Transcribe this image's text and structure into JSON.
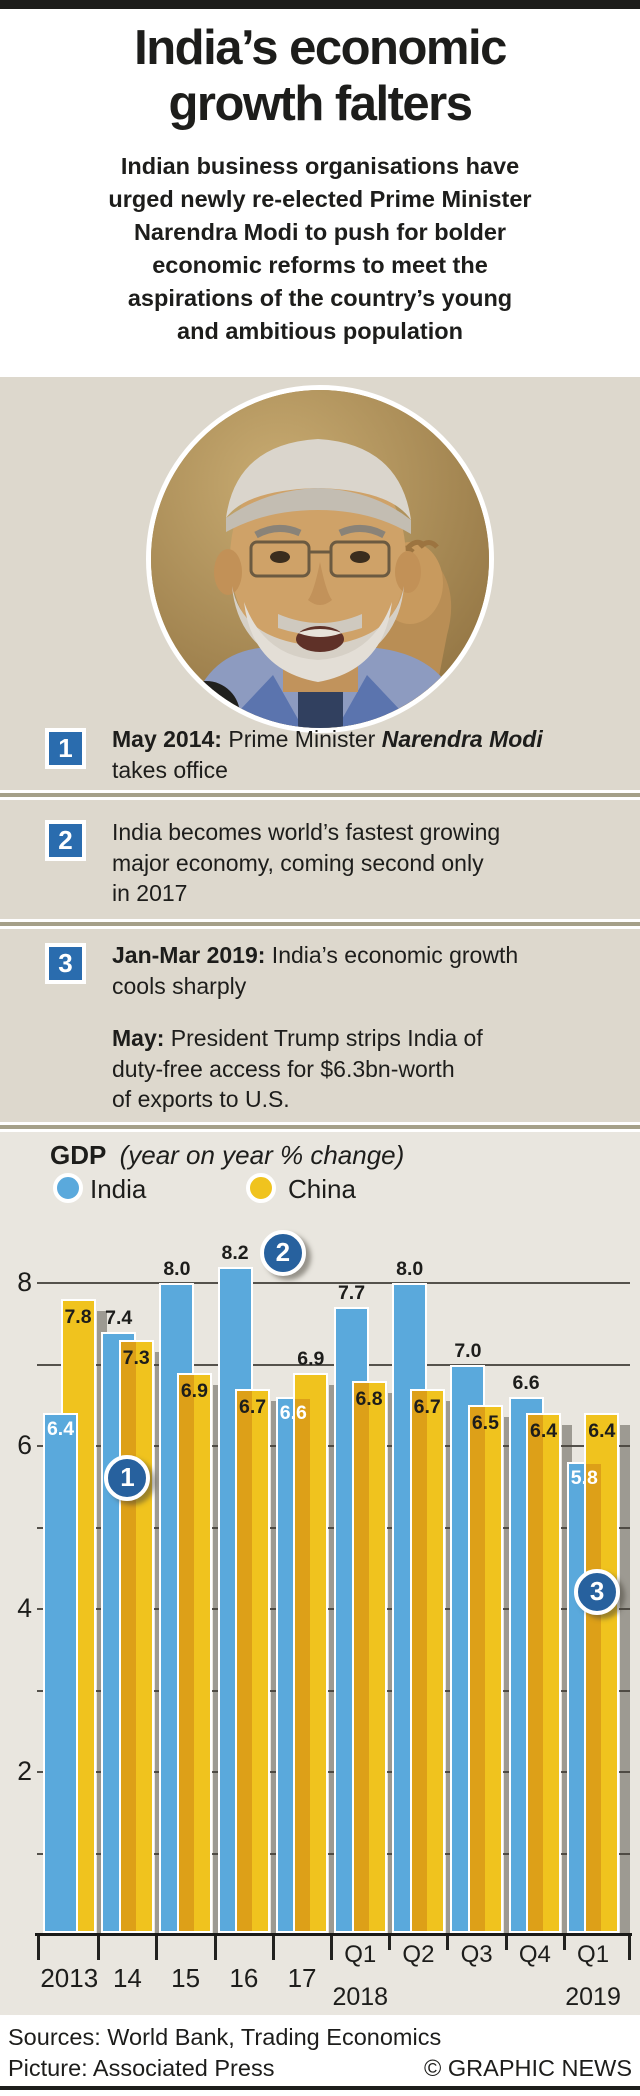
{
  "header": {
    "title": "India’s economic\ngrowth falters",
    "intro": "Indian business organisations have\nurged newly re-elected Prime Minister\nNarendra Modi to push for bolder\neconomic reforms to meet the\naspirations of the country’s young\nand ambitious population"
  },
  "photo": {
    "subject": "Narendra Modi portrait photo"
  },
  "callouts": [
    {
      "num": "1",
      "segments": [
        {
          "text": "May 2014:",
          "style": "b"
        },
        {
          "text": " Prime Minister ",
          "style": "n"
        },
        {
          "text": "Narendra Modi",
          "style": "bi"
        },
        {
          "text": "\ntakes office",
          "style": "n"
        }
      ]
    },
    {
      "num": "2",
      "segments": [
        {
          "text": "India becomes world’s fastest growing\nmajor economy, coming second only\nin 2017",
          "style": "n"
        }
      ]
    },
    {
      "num": "3",
      "segments": [
        {
          "text": "Jan-Mar 2019:",
          "style": "b"
        },
        {
          "text": " India’s economic growth\ncools sharply",
          "style": "n"
        }
      ],
      "segments2": [
        {
          "text": "May:",
          "style": "b"
        },
        {
          "text": " President Trump strips India of\nduty-free access for $6.3bn-worth\nof exports to U.S.",
          "style": "n"
        }
      ]
    }
  ],
  "chart_data": {
    "type": "bar",
    "title": "GDP",
    "subtitle": "(year on year % change)",
    "ylim": [
      0,
      8.8
    ],
    "grid": "on",
    "gridlines": [
      1,
      2,
      3,
      4,
      5,
      6,
      7,
      8
    ],
    "axis_labels": [
      2,
      4,
      6,
      8
    ],
    "categories": [
      "2013",
      "14",
      "15",
      "16",
      "17",
      "Q1",
      "Q2",
      "Q3",
      "Q4",
      "Q1"
    ],
    "sub_year_labels": [
      {
        "label": "2018",
        "group": 5
      },
      {
        "label": "2019",
        "group": 9
      }
    ],
    "series": [
      {
        "name": "India",
        "color": "#5aa9dc",
        "values": [
          6.4,
          7.4,
          8.0,
          8.2,
          6.6,
          7.7,
          8.0,
          7.0,
          6.6,
          5.8
        ],
        "label_pos": [
          "inside",
          "above",
          "above",
          "above",
          "inside",
          "above",
          "above",
          "above",
          "above",
          "inside"
        ],
        "label_color_inside": "#ffffff"
      },
      {
        "name": "China",
        "color": "#f0c31e",
        "values": [
          7.8,
          7.3,
          6.9,
          6.7,
          6.9,
          6.8,
          6.7,
          6.5,
          6.4,
          6.4
        ],
        "label_pos": [
          "inside",
          "inside",
          "inside",
          "inside",
          "above",
          "inside",
          "inside",
          "inside",
          "inside",
          "inside"
        ],
        "label_color_inside": "#1d1d1b"
      }
    ],
    "overlap_color": "#dda018",
    "front_series_by_group": [
      "India",
      "China",
      "China",
      "China",
      "China",
      "China",
      "China",
      "China",
      "China",
      "China"
    ],
    "markers": [
      {
        "label": "1",
        "group": 1,
        "value": 5.61
      },
      {
        "label": "2",
        "group": 3,
        "value": 8.37,
        "dx": 39
      },
      {
        "label": "3",
        "group": 9,
        "value": 4.21,
        "dx": 4
      }
    ]
  },
  "footer": {
    "sources": "Sources: World Bank, Trading Economics",
    "picture": "Picture: Associated Press",
    "credit": "© GRAPHIC NEWS"
  }
}
